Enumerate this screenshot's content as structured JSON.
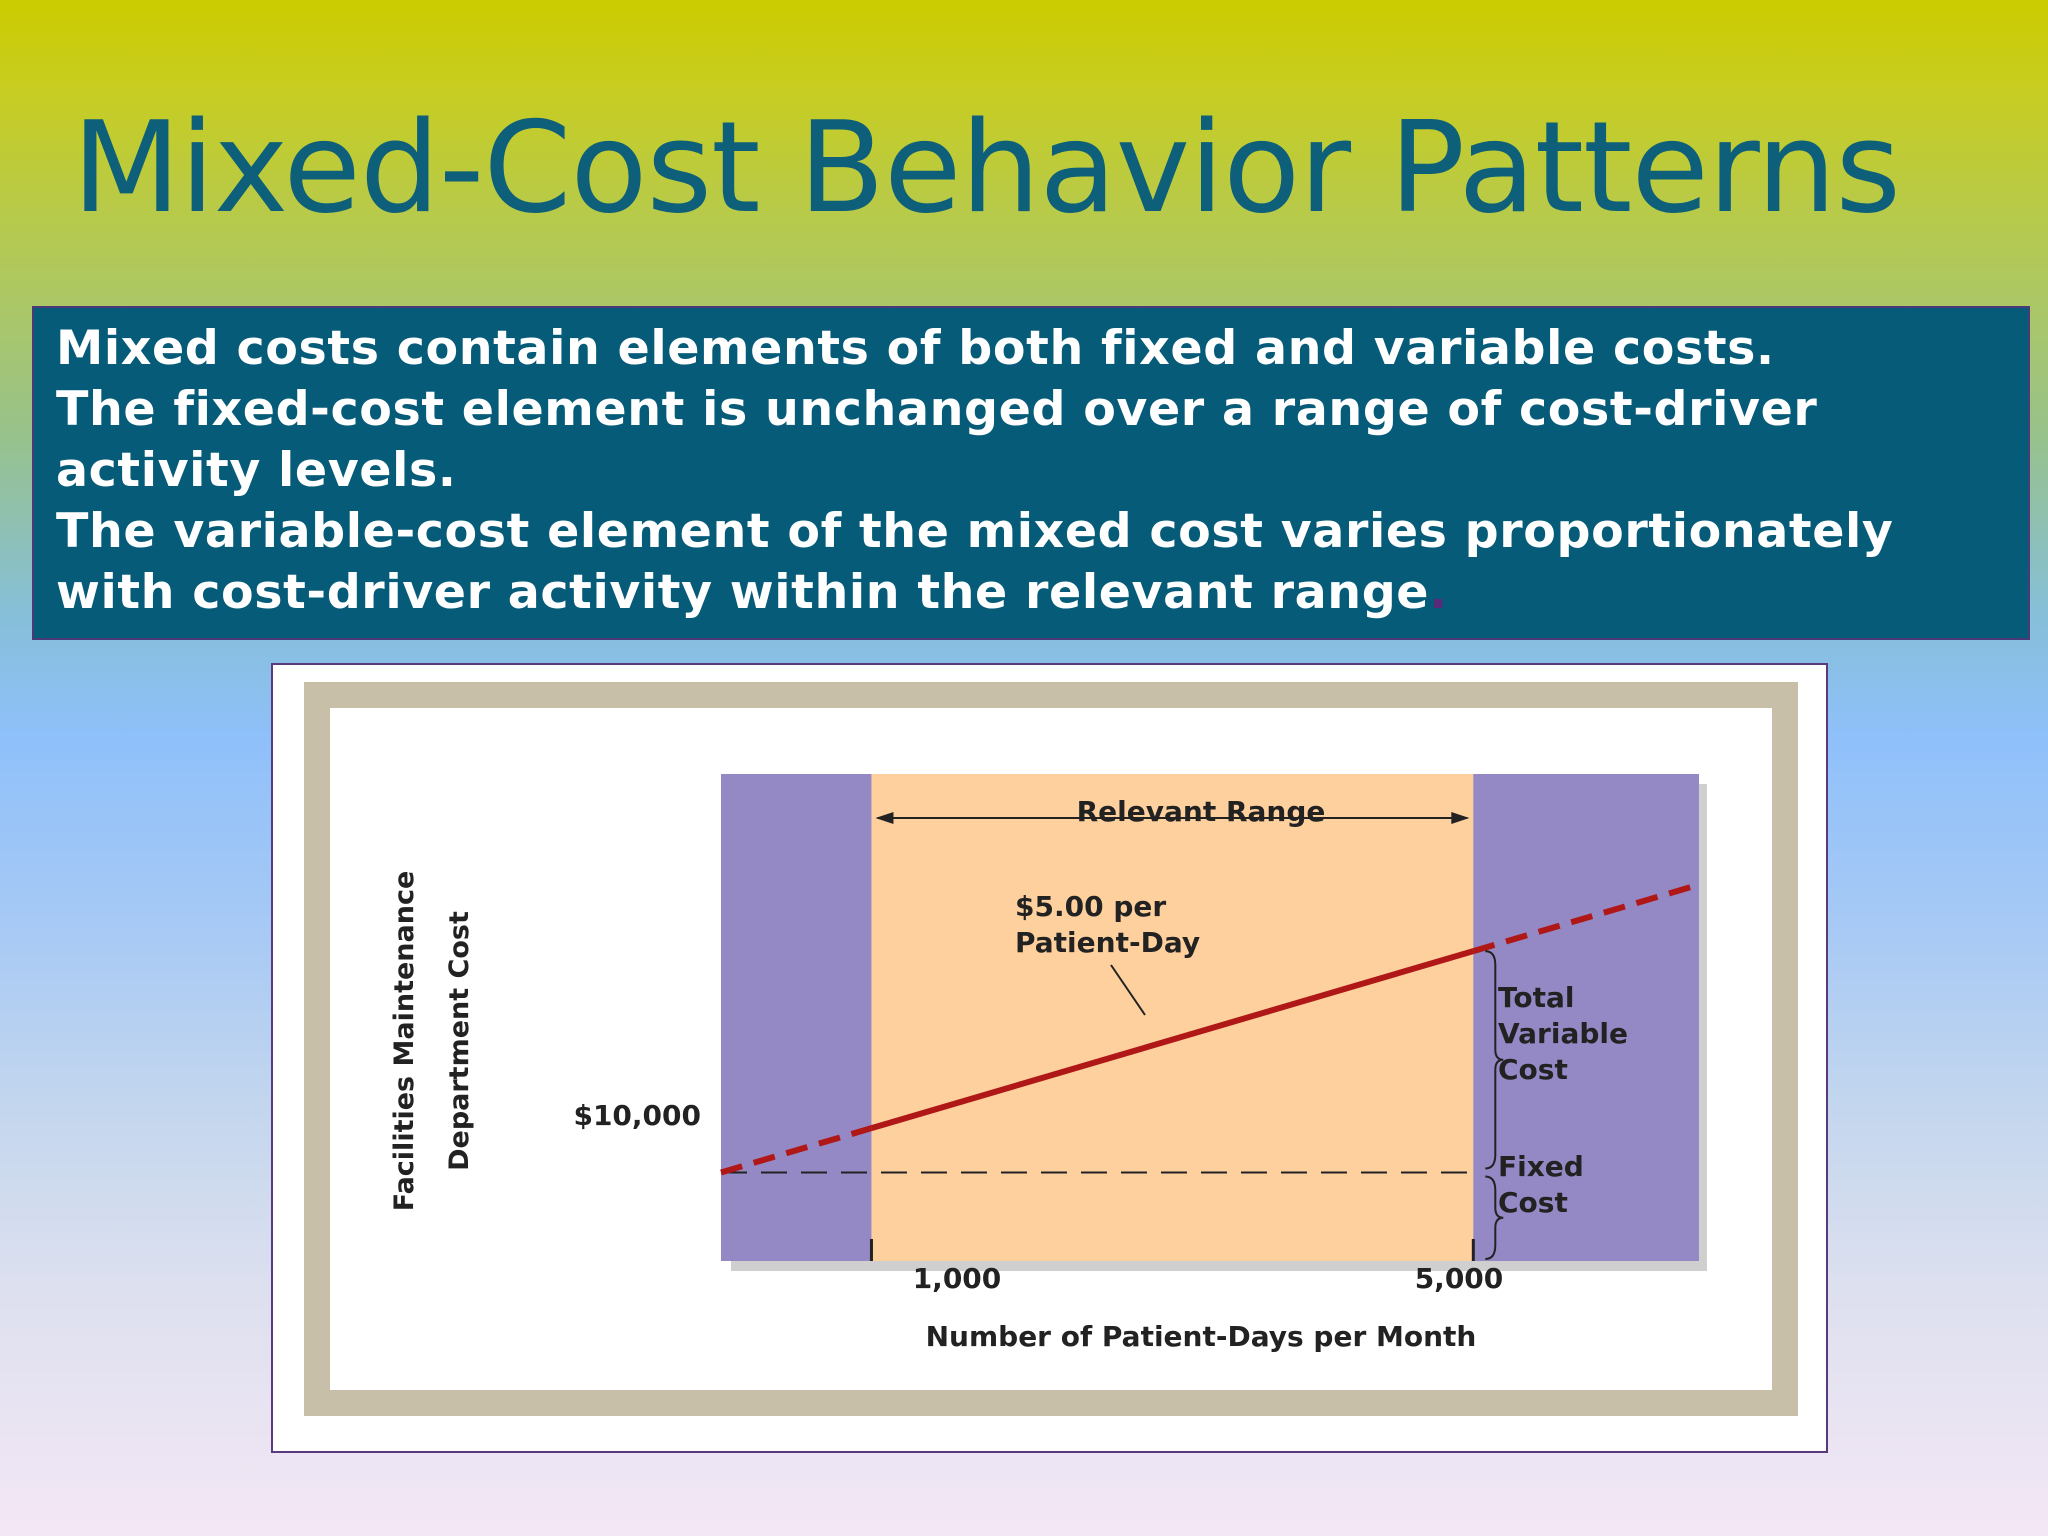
{
  "slide": {
    "title": "Mixed-Cost Behavior Patterns",
    "bullets": [
      "Mixed costs contain elements of both fixed and variable costs.",
      "The fixed-cost element is unchanged over a range of cost-driver",
      "activity levels.",
      "The variable-cost element of the mixed cost varies proportionately",
      "with cost-driver activity within the relevant range",
      "."
    ]
  },
  "chart_data": {
    "type": "line",
    "xlabel": "Number of Patient-Days per Month",
    "ylabel_lines": [
      "Facilities Maintenance",
      "Department Cost"
    ],
    "x_ticks": [
      "1,000",
      "5,000"
    ],
    "y_ticks": [
      "$10,000"
    ],
    "relevant_range": {
      "label": "Relevant Range",
      "from": 1000,
      "to": 5000
    },
    "fixed_cost": 10000,
    "variable_rate": 5.0,
    "series": [
      {
        "points": [
          [
            1000,
            15000
          ],
          [
            5000,
            35000
          ]
        ],
        "style": "solid"
      },
      {
        "points": [
          [
            0,
            10000
          ],
          [
            1000,
            15000
          ]
        ],
        "style": "dashed"
      },
      {
        "points": [
          [
            5000,
            35000
          ],
          [
            6500,
            42500
          ]
        ],
        "style": "dashed"
      }
    ],
    "annotations": {
      "rate": [
        "$5.00 per",
        "Patient-Day"
      ],
      "variable": [
        "Total",
        "Variable",
        "Cost"
      ],
      "fixed": [
        "Fixed",
        "Cost"
      ]
    },
    "colors": {
      "outside_range": "#9489c4",
      "relevant_range": "#fed09e",
      "cost_line": "#b01818",
      "frame": "#c7bfa8"
    }
  }
}
